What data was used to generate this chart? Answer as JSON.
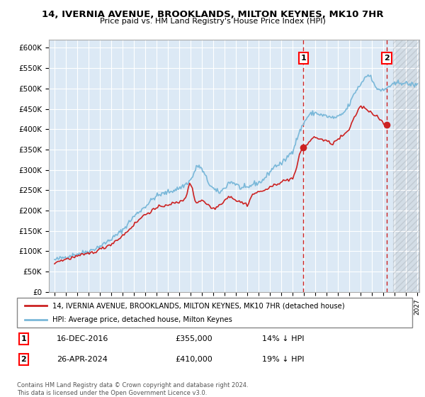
{
  "title": "14, IVERNIA AVENUE, BROOKLANDS, MILTON KEYNES, MK10 7HR",
  "subtitle": "Price paid vs. HM Land Registry's House Price Index (HPI)",
  "ylim": [
    0,
    620000
  ],
  "yticks": [
    0,
    50000,
    100000,
    150000,
    200000,
    250000,
    300000,
    350000,
    400000,
    450000,
    500000,
    550000,
    600000
  ],
  "ytick_labels": [
    "£0",
    "£50K",
    "£100K",
    "£150K",
    "£200K",
    "£250K",
    "£300K",
    "£350K",
    "£400K",
    "£450K",
    "£500K",
    "£550K",
    "£600K"
  ],
  "hpi_color": "#7ab8d9",
  "price_color": "#cc2222",
  "bg_color": "#dce9f5",
  "grid_color": "#ffffff",
  "legend_label_price": "14, IVERNIA AVENUE, BROOKLANDS, MILTON KEYNES, MK10 7HR (detached house)",
  "legend_label_hpi": "HPI: Average price, detached house, Milton Keynes",
  "sale1_date": "16-DEC-2016",
  "sale1_price": "£355,000",
  "sale1_note": "14% ↓ HPI",
  "sale2_date": "26-APR-2024",
  "sale2_price": "£410,000",
  "sale2_note": "19% ↓ HPI",
  "footnote": "Contains HM Land Registry data © Crown copyright and database right 2024.\nThis data is licensed under the Open Government Licence v3.0.",
  "sale1_x": 2016.96,
  "sale1_y": 355000,
  "sale2_x": 2024.32,
  "sale2_y": 410000,
  "xmin": 1994.5,
  "xmax": 2027.2,
  "hatch_start": 2024.9,
  "dashed_line_color": "#cc2222"
}
